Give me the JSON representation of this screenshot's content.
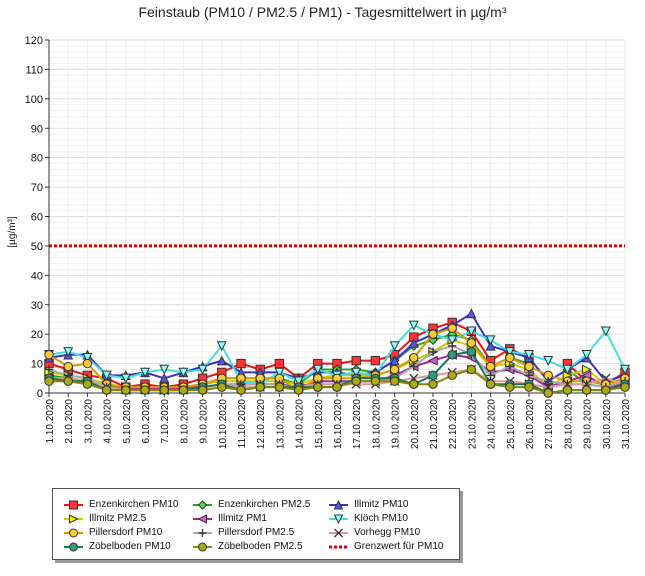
{
  "chart_data": {
    "type": "line",
    "title": "Feinstaub (PM10 / PM2.5 / PM1) -  Tagesmittelwert in µg/m³",
    "ylabel": "[µg/m³]",
    "xlabel": "",
    "ylim": [
      0,
      120
    ],
    "yticks": [
      0,
      10,
      20,
      30,
      40,
      50,
      60,
      70,
      80,
      90,
      100,
      110,
      120
    ],
    "grid": true,
    "legend_position": "bottom-left",
    "categories": [
      "1.10.2020",
      "2.10.2020",
      "3.10.2020",
      "4.10.2020",
      "5.10.2020",
      "6.10.2020",
      "7.10.2020",
      "8.10.2020",
      "9.10.2020",
      "10.10.2020",
      "11.10.2020",
      "12.10.2020",
      "13.10.2020",
      "14.10.2020",
      "15.10.2020",
      "16.10.2020",
      "17.10.2020",
      "18.10.2020",
      "19.10.2020",
      "20.10.2020",
      "21.10.2020",
      "22.10.2020",
      "23.10.2020",
      "24.10.2020",
      "25.10.2020",
      "26.10.2020",
      "27.10.2020",
      "28.10.2020",
      "29.10.2020",
      "30.10.2020",
      "31.10.2020"
    ],
    "limit_line": {
      "name": "Grenzwert für PM10",
      "value": 50,
      "color": "#dd0000"
    },
    "series": [
      {
        "name": "Enzenkirchen PM10",
        "color": "#ee1111",
        "fill": "#ff3333",
        "marker": "square",
        "values": [
          10,
          8,
          6,
          5,
          2,
          3,
          2,
          3,
          5,
          7,
          10,
          8,
          10,
          5,
          10,
          10,
          11,
          11,
          13,
          19,
          22,
          24,
          21,
          11,
          15,
          12,
          null,
          10,
          4,
          3,
          7
        ]
      },
      {
        "name": "Enzenkirchen PM2.5",
        "color": "#22aa22",
        "fill": "#44dd44",
        "marker": "diamond",
        "values": [
          6,
          5,
          4,
          3,
          1,
          2,
          1,
          2,
          3,
          5,
          5,
          5,
          5,
          3,
          8,
          8,
          8,
          7,
          11,
          16,
          18,
          20,
          18,
          9,
          12,
          10,
          null,
          8,
          3,
          2,
          5
        ]
      },
      {
        "name": "Illmitz PM10",
        "color": "#3333cc",
        "fill": "#5555ee",
        "marker": "triangle-up",
        "values": [
          12,
          13,
          13,
          6,
          6,
          7,
          5,
          7,
          9,
          11,
          7,
          7,
          7,
          5,
          7,
          7,
          6,
          7,
          11,
          17,
          20,
          23,
          27,
          16,
          14,
          12,
          4,
          8,
          12,
          4,
          6
        ]
      },
      {
        "name": "Illmitz PM2.5",
        "color": "#cccc00",
        "fill": "#f0f000",
        "marker": "triangle-right",
        "values": [
          7,
          6,
          5,
          3,
          2,
          2,
          1,
          2,
          3,
          4,
          4,
          4,
          4,
          3,
          5,
          6,
          6,
          6,
          8,
          11,
          14,
          18,
          16,
          9,
          10,
          8,
          2,
          6,
          8,
          3,
          4
        ]
      },
      {
        "name": "Illmitz PM1",
        "color": "#aa22aa",
        "fill": "#dd55dd",
        "marker": "triangle-left",
        "values": [
          5,
          5,
          4,
          2,
          1,
          2,
          1,
          2,
          2,
          3,
          3,
          3,
          3,
          2,
          4,
          4,
          4,
          4,
          6,
          9,
          11,
          13,
          12,
          7,
          8,
          6,
          2,
          4,
          6,
          2,
          3
        ]
      },
      {
        "name": "Klöch PM10",
        "color": "#44dddd",
        "fill": "#88ffff",
        "marker": "triangle-down",
        "values": [
          13,
          14,
          12,
          6,
          5,
          7,
          8,
          7,
          8,
          16,
          4,
          3,
          7,
          4,
          8,
          6,
          7,
          6,
          16,
          23,
          20,
          18,
          21,
          18,
          14,
          13,
          11,
          8,
          13,
          21,
          8
        ]
      },
      {
        "name": "Pillersdorf PM10",
        "color": "#dd9900",
        "fill": "#ffcc33",
        "marker": "circle",
        "values": [
          13,
          9,
          10,
          3,
          2,
          2,
          2,
          2,
          3,
          5,
          5,
          5,
          5,
          1,
          5,
          5,
          5,
          6,
          8,
          12,
          20,
          22,
          17,
          9,
          12,
          9,
          6,
          4,
          4,
          3,
          5
        ]
      },
      {
        "name": "Pillersdorf PM2.5",
        "color": "#aaaaaa",
        "fill": "#bbbbbb",
        "marker": "plus",
        "values": [
          8,
          6,
          5,
          2,
          1,
          1,
          1,
          1,
          2,
          3,
          3,
          3,
          3,
          1,
          3,
          3,
          4,
          4,
          5,
          9,
          14,
          16,
          13,
          6,
          9,
          6,
          4,
          3,
          3,
          2,
          4
        ]
      },
      {
        "name": "Vorhegg PM10",
        "color": "#dd9999",
        "fill": "#eebbbb",
        "marker": "cross",
        "values": [
          5,
          5,
          4,
          2,
          1,
          1,
          1,
          1,
          2,
          3,
          2,
          2,
          2,
          2,
          3,
          3,
          3,
          3,
          4,
          5,
          6,
          7,
          8,
          4,
          4,
          3,
          2,
          3,
          3,
          5,
          3
        ]
      },
      {
        "name": "Zöbelboden PM10",
        "color": "#117755",
        "fill": "#339977",
        "marker": "circle",
        "values": [
          5,
          4,
          4,
          1,
          1,
          1,
          1,
          1,
          2,
          3,
          1,
          2,
          2,
          2,
          2,
          2,
          5,
          5,
          5,
          3,
          6,
          13,
          14,
          3,
          3,
          3,
          0,
          1,
          1,
          1,
          3
        ]
      },
      {
        "name": "Zöbelboden PM2.5",
        "color": "#888800",
        "fill": "#aaaa11",
        "marker": "circle",
        "values": [
          4,
          4,
          3,
          1,
          1,
          1,
          1,
          1,
          1,
          2,
          1,
          2,
          2,
          1,
          2,
          2,
          4,
          4,
          4,
          3,
          3,
          6,
          8,
          3,
          2,
          2,
          0,
          1,
          1,
          1,
          2
        ]
      }
    ]
  }
}
